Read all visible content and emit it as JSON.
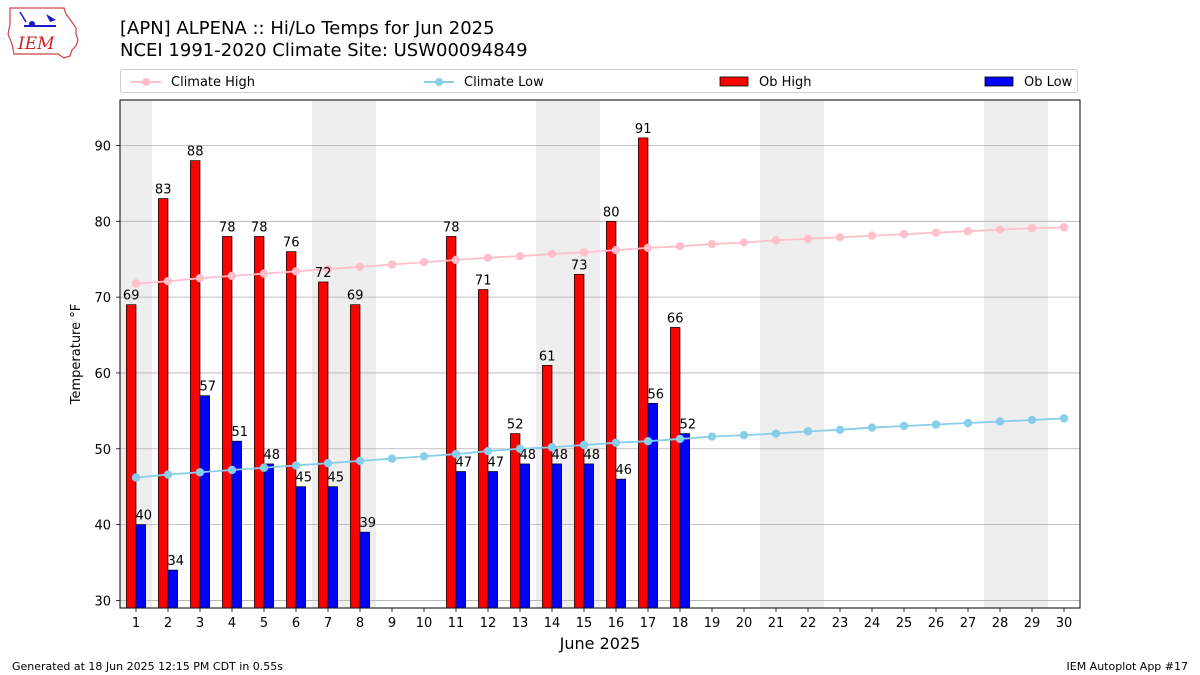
{
  "header": {
    "title_line1": "[APN] ALPENA :: Hi/Lo Temps for Jun 2025",
    "title_line2": "NCEI 1991-2020 Climate Site: USW00094849"
  },
  "logo": {
    "text": "IEM",
    "color": "#cc2222"
  },
  "footer": {
    "generated": "Generated at 18 Jun 2025 12:15 PM CDT in 0.55s",
    "app": "IEM Autoplot App #17"
  },
  "chart_data": {
    "type": "bar",
    "xlabel": "June 2025",
    "ylabel": "Temperature °F",
    "ylim": [
      29,
      96
    ],
    "xlim": [
      0.5,
      30.5
    ],
    "yticks": [
      30,
      40,
      50,
      60,
      70,
      80,
      90
    ],
    "grid": "horizontal",
    "legend_placement": "top",
    "categories": [
      "1",
      "2",
      "3",
      "4",
      "5",
      "6",
      "7",
      "8",
      "9",
      "10",
      "11",
      "12",
      "13",
      "14",
      "15",
      "16",
      "17",
      "18",
      "19",
      "20",
      "21",
      "22",
      "23",
      "24",
      "25",
      "26",
      "27",
      "28",
      "29",
      "30"
    ],
    "weekend_shading": [
      [
        1,
        1
      ],
      [
        7,
        8
      ],
      [
        14,
        15
      ],
      [
        21,
        22
      ],
      [
        28,
        29
      ]
    ],
    "series": [
      {
        "name": "Ob High",
        "kind": "bar",
        "color": "#ff0000",
        "values": [
          69,
          83,
          88,
          78,
          78,
          76,
          72,
          69,
          null,
          null,
          78,
          71,
          52,
          61,
          73,
          80,
          91,
          66,
          null,
          null,
          null,
          null,
          null,
          null,
          null,
          null,
          null,
          null,
          null,
          null
        ]
      },
      {
        "name": "Ob Low",
        "kind": "bar",
        "color": "#0000ff",
        "values": [
          40,
          34,
          57,
          51,
          48,
          45,
          45,
          39,
          null,
          null,
          47,
          47,
          48,
          48,
          48,
          46,
          56,
          52,
          null,
          null,
          null,
          null,
          null,
          null,
          null,
          null,
          null,
          null,
          null,
          null
        ]
      },
      {
        "name": "Climate High",
        "kind": "line",
        "color": "#ffc0cb",
        "values": [
          71.8,
          72.1,
          72.5,
          72.8,
          73.1,
          73.4,
          73.7,
          74.0,
          74.3,
          74.6,
          74.9,
          75.2,
          75.4,
          75.7,
          75.9,
          76.2,
          76.5,
          76.7,
          77.0,
          77.2,
          77.5,
          77.7,
          77.9,
          78.1,
          78.3,
          78.5,
          78.7,
          78.9,
          79.1,
          79.2
        ]
      },
      {
        "name": "Climate Low",
        "kind": "line",
        "color": "#87ceeb",
        "values": [
          46.2,
          46.6,
          46.9,
          47.2,
          47.5,
          47.8,
          48.1,
          48.4,
          48.7,
          49.0,
          49.3,
          49.7,
          50.0,
          50.2,
          50.5,
          50.8,
          51.0,
          51.3,
          51.6,
          51.8,
          52.0,
          52.3,
          52.5,
          52.8,
          53.0,
          53.2,
          53.4,
          53.6,
          53.8,
          54.0
        ]
      }
    ]
  }
}
